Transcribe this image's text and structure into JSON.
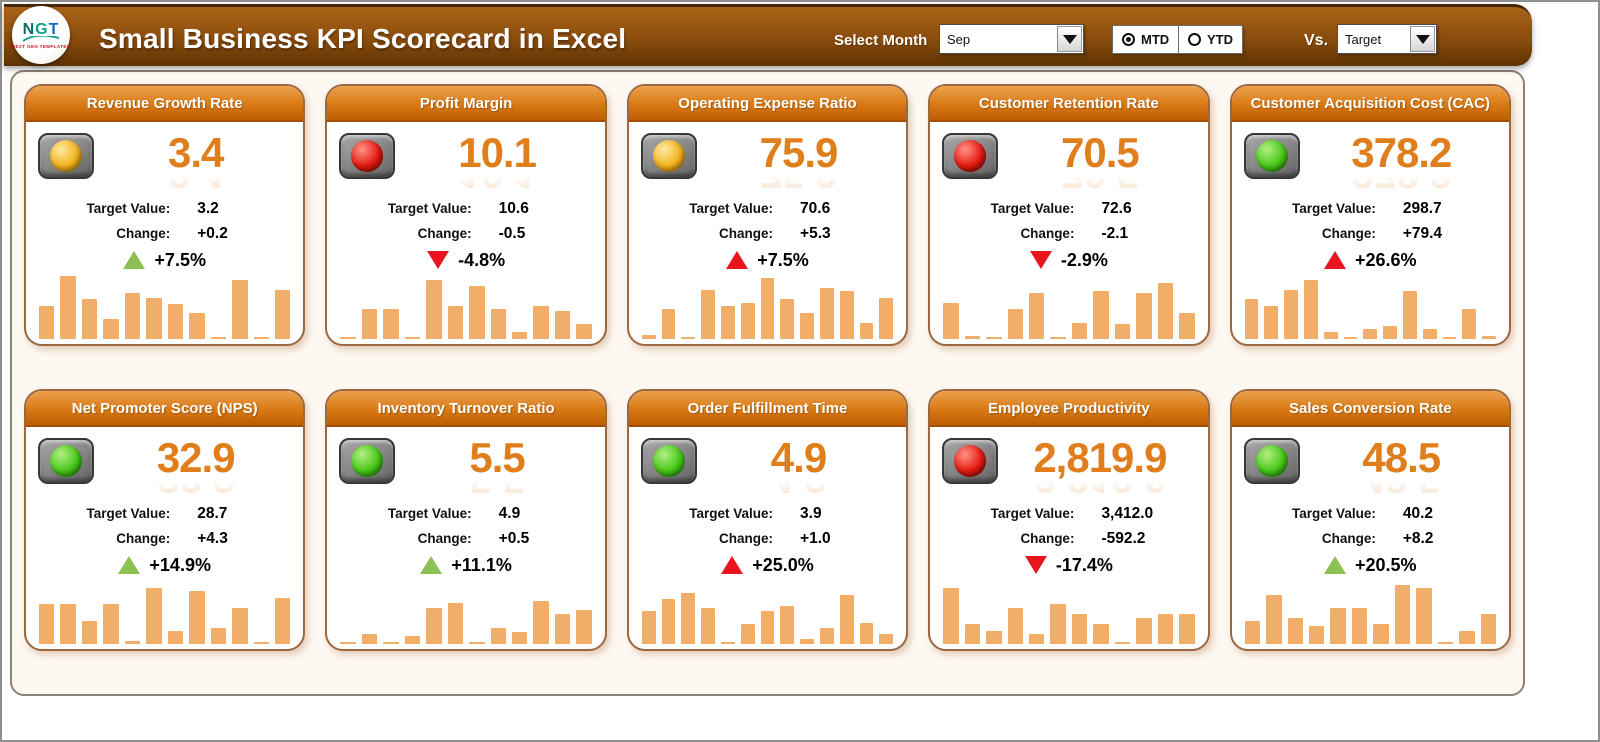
{
  "header": {
    "logo": {
      "letters": [
        "N",
        "G",
        "T"
      ],
      "subtext": "NEXT GEN TEMPLATES"
    },
    "title": "Small Business KPI Scorecard in Excel",
    "select_month_label": "Select Month",
    "month_value": "Sep",
    "period_options": [
      {
        "label": "MTD",
        "selected": true
      },
      {
        "label": "YTD",
        "selected": false
      }
    ],
    "vs_label": "Vs.",
    "vs_value": "Target"
  },
  "labels": {
    "target": "Target Value:",
    "change": "Change:"
  },
  "colors": {
    "band_top": "#aa6418",
    "band_bottom": "#5e3304",
    "card_header_top": "#eda04d",
    "card_header_bottom": "#bf5c04",
    "kpi_value": "#e07e1c",
    "bar": "#f0ae68",
    "panel_bg": "#fdf8f2",
    "trend_green": "#8cc152",
    "trend_red": "#e8141e",
    "status_green": "#46c818",
    "status_yellow": "#f2b21e",
    "status_red": "#e41910"
  },
  "cards": [
    {
      "title": "Revenue Growth Rate",
      "status": "yellow",
      "value": "3.4",
      "target": "3.2",
      "change": "+0.2",
      "trend": "up",
      "trend_color": "green",
      "pct": "+7.5%",
      "bars": [
        50,
        95,
        60,
        30,
        70,
        62,
        53,
        40,
        2,
        90,
        2,
        75
      ]
    },
    {
      "title": "Profit Margin",
      "status": "red",
      "value": "10.1",
      "target": "10.6",
      "change": "-0.5",
      "trend": "down",
      "trend_color": "red",
      "pct": "-4.8%",
      "bars": [
        2,
        45,
        45,
        2,
        90,
        50,
        80,
        45,
        10,
        50,
        42,
        22
      ]
    },
    {
      "title": "Operating Expense Ratio",
      "status": "yellow",
      "value": "75.9",
      "target": "70.6",
      "change": "+5.3",
      "trend": "up",
      "trend_color": "red",
      "pct": "+7.5%",
      "bars": [
        6,
        45,
        2,
        75,
        50,
        55,
        92,
        60,
        40,
        78,
        72,
        25,
        62
      ]
    },
    {
      "title": "Customer Retention Rate",
      "status": "red",
      "value": "70.5",
      "target": "72.6",
      "change": "-2.1",
      "trend": "down",
      "trend_color": "red",
      "pct": "-2.9%",
      "bars": [
        55,
        5,
        2,
        45,
        70,
        3,
        25,
        72,
        22,
        70,
        85,
        40
      ]
    },
    {
      "title": "Customer Acquisition Cost (CAC)",
      "status": "green",
      "value": "378.2",
      "target": "298.7",
      "change": "+79.4",
      "trend": "up",
      "trend_color": "red",
      "pct": "+26.6%",
      "bars": [
        60,
        50,
        75,
        90,
        10,
        2,
        15,
        20,
        72,
        15,
        2,
        45,
        5
      ]
    },
    {
      "title": "Net Promoter Score (NPS)",
      "status": "green",
      "value": "32.9",
      "target": "28.7",
      "change": "+4.3",
      "trend": "up",
      "trend_color": "green",
      "pct": "+14.9%",
      "bars": [
        60,
        60,
        35,
        60,
        5,
        85,
        20,
        80,
        25,
        55,
        2,
        70
      ]
    },
    {
      "title": "Inventory Turnover Ratio",
      "status": "green",
      "value": "5.5",
      "target": "4.9",
      "change": "+0.5",
      "trend": "up",
      "trend_color": "green",
      "pct": "+11.1%",
      "bars": [
        2,
        15,
        2,
        12,
        55,
        62,
        2,
        25,
        18,
        65,
        45,
        52
      ]
    },
    {
      "title": "Order Fulfillment Time",
      "status": "green",
      "value": "4.9",
      "target": "3.9",
      "change": "+1.0",
      "trend": "up",
      "trend_color": "red",
      "pct": "+25.0%",
      "bars": [
        50,
        68,
        78,
        55,
        2,
        30,
        50,
        58,
        8,
        25,
        75,
        32,
        15
      ]
    },
    {
      "title": "Employee Productivity",
      "status": "red",
      "value": "2,819.9",
      "target": "3,412.0",
      "change": "-592.2",
      "trend": "down",
      "trend_color": "red",
      "pct": "-17.4%",
      "bars": [
        85,
        30,
        20,
        55,
        15,
        60,
        45,
        30,
        2,
        40,
        45,
        45
      ]
    },
    {
      "title": "Sales Conversion Rate",
      "status": "green",
      "value": "48.5",
      "target": "40.2",
      "change": "+8.2",
      "trend": "up",
      "trend_color": "green",
      "pct": "+20.5%",
      "bars": [
        35,
        75,
        40,
        28,
        55,
        55,
        30,
        90,
        85,
        2,
        20,
        45
      ]
    }
  ]
}
